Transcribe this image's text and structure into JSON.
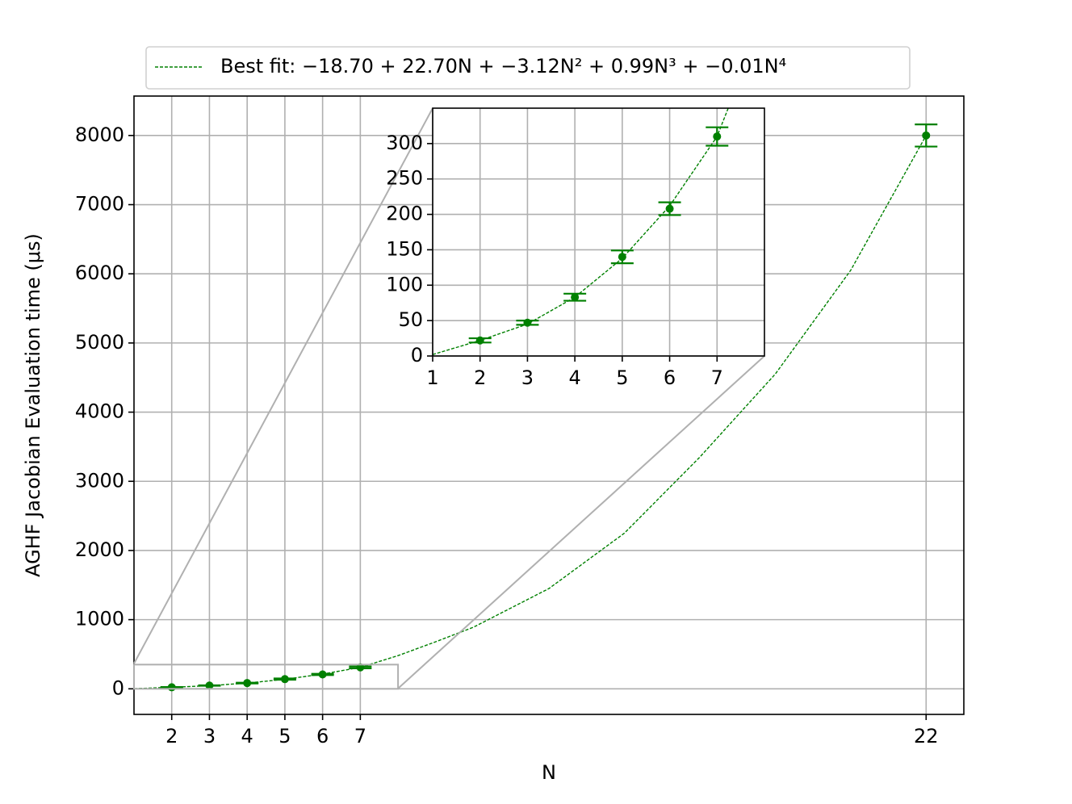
{
  "chart_data": {
    "type": "errorbar",
    "xlabel": "N",
    "ylabel": "AGHF Jacobian Evaluation time (μs)",
    "xlim": [
      1,
      23
    ],
    "ylim": [
      -370,
      8570
    ],
    "xticks": [
      2,
      3,
      4,
      5,
      6,
      7,
      22
    ],
    "yticks": [
      0,
      1000,
      2000,
      3000,
      4000,
      5000,
      6000,
      7000,
      8000
    ],
    "grid": true,
    "legend": "upper center",
    "series": [
      {
        "name": "Best fit: −18.70 + 22.70N + −3.12N² + 0.99N³ + −0.01N⁴",
        "color": "#008000",
        "style": "dashed",
        "x": [
          1,
          2,
          3,
          4,
          5,
          6,
          7,
          8,
          9,
          10,
          12,
          14,
          16,
          18,
          20,
          22
        ],
        "values": [
          2,
          22,
          45,
          83,
          138,
          212,
          310,
          480,
          680,
          890,
          1450,
          2250,
          3350,
          4550,
          6050,
          8000
        ]
      },
      {
        "color": "#008000",
        "x": [
          2,
          3,
          4,
          5,
          6,
          7,
          22
        ],
        "values": [
          22,
          47,
          83,
          140,
          208,
          310,
          8000
        ],
        "errors": [
          3,
          3,
          5,
          9,
          9,
          13,
          160
        ]
      }
    ],
    "inset": {
      "xlim": [
        1,
        8
      ],
      "ylim": [
        0,
        350
      ],
      "xticks": [
        1,
        2,
        3,
        4,
        5,
        6,
        7
      ],
      "yticks": [
        0,
        50,
        100,
        150,
        200,
        250,
        300
      ]
    }
  }
}
